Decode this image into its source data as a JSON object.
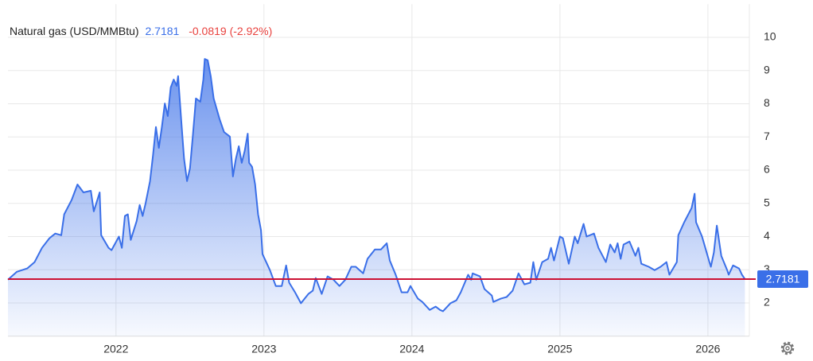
{
  "chart_data": {
    "type": "area",
    "title": "Natural gas (USD/MMBtu)",
    "last_value": 2.7181,
    "change_label": "-0.0819 (-2.92%)",
    "color": "#3a6fe8",
    "last_line_color": "#cc1133",
    "up_color": "#3a6fe8",
    "down_color": "#e8413d",
    "grid": true,
    "xlim": [
      2021.27,
      2026.28
    ],
    "xticks": [
      2022,
      2023,
      2024,
      2025,
      2026
    ],
    "ylim": [
      1,
      11
    ],
    "yticks": [
      2,
      3,
      4,
      5,
      6,
      7,
      8,
      9,
      10
    ],
    "x": [
      2021.27,
      2021.33,
      2021.4,
      2021.45,
      2021.5,
      2021.55,
      2021.59,
      2021.63,
      2021.65,
      2021.7,
      2021.74,
      2021.78,
      2021.83,
      2021.85,
      2021.89,
      2021.9,
      2021.95,
      2021.97,
      2022.02,
      2022.04,
      2022.06,
      2022.08,
      2022.1,
      2022.14,
      2022.16,
      2022.18,
      2022.2,
      2022.23,
      2022.25,
      2022.27,
      2022.29,
      2022.31,
      2022.33,
      2022.35,
      2022.37,
      2022.39,
      2022.41,
      2022.42,
      2022.44,
      2022.46,
      2022.48,
      2022.5,
      2022.52,
      2022.54,
      2022.57,
      2022.59,
      2022.6,
      2022.62,
      2022.64,
      2022.66,
      2022.7,
      2022.73,
      2022.77,
      2022.79,
      2022.81,
      2022.83,
      2022.85,
      2022.87,
      2022.89,
      2022.9,
      2022.92,
      2022.94,
      2022.96,
      2022.98,
      2022.99,
      2023.04,
      2023.08,
      2023.12,
      2023.15,
      2023.17,
      2023.21,
      2023.25,
      2023.3,
      2023.33,
      2023.35,
      2023.39,
      2023.43,
      2023.47,
      2023.51,
      2023.55,
      2023.59,
      2023.62,
      2023.67,
      2023.7,
      2023.75,
      2023.79,
      2023.83,
      2023.85,
      2023.89,
      2023.93,
      2023.97,
      2023.99,
      2024.04,
      2024.07,
      2024.12,
      2024.16,
      2024.19,
      2024.21,
      2024.26,
      2024.3,
      2024.33,
      2024.38,
      2024.4,
      2024.41,
      2024.46,
      2024.49,
      2024.54,
      2024.55,
      2024.6,
      2024.64,
      2024.68,
      2024.72,
      2024.76,
      2024.8,
      2024.82,
      2024.84,
      2024.88,
      2024.92,
      2024.94,
      2024.96,
      2025.0,
      2025.02,
      2025.06,
      2025.1,
      2025.12,
      2025.16,
      2025.18,
      2025.23,
      2025.26,
      2025.31,
      2025.34,
      2025.37,
      2025.39,
      2025.41,
      2025.43,
      2025.47,
      2025.51,
      2025.53,
      2025.55,
      2025.6,
      2025.64,
      2025.68,
      2025.72,
      2025.74,
      2025.79,
      2025.8,
      2025.84,
      2025.89,
      2025.91,
      2025.92,
      2025.96,
      2026.01,
      2026.02,
      2026.04,
      2026.06,
      2026.09,
      2026.13,
      2026.14,
      2026.17,
      2026.21,
      2026.23,
      2026.25
    ],
    "values": [
      2.7,
      2.94,
      3.04,
      3.23,
      3.66,
      3.95,
      4.09,
      4.04,
      4.67,
      5.1,
      5.57,
      5.33,
      5.38,
      4.76,
      5.33,
      4.04,
      3.66,
      3.59,
      4.0,
      3.66,
      4.62,
      4.67,
      3.9,
      4.47,
      4.95,
      4.62,
      5.0,
      5.67,
      6.44,
      7.3,
      6.67,
      7.3,
      8.01,
      7.63,
      8.49,
      8.73,
      8.54,
      8.83,
      7.54,
      6.34,
      5.67,
      6.05,
      7.06,
      8.16,
      8.06,
      8.73,
      9.35,
      9.31,
      8.83,
      8.16,
      7.54,
      7.15,
      7.01,
      5.81,
      6.34,
      6.72,
      6.22,
      6.58,
      7.1,
      6.22,
      6.1,
      5.57,
      4.67,
      4.19,
      3.47,
      2.99,
      2.51,
      2.51,
      3.13,
      2.61,
      2.32,
      1.99,
      2.27,
      2.37,
      2.75,
      2.27,
      2.8,
      2.7,
      2.51,
      2.7,
      3.09,
      3.09,
      2.89,
      3.33,
      3.61,
      3.61,
      3.8,
      3.28,
      2.85,
      2.32,
      2.32,
      2.51,
      2.13,
      2.03,
      1.79,
      1.89,
      1.79,
      1.75,
      1.99,
      2.08,
      2.32,
      2.85,
      2.7,
      2.89,
      2.8,
      2.42,
      2.22,
      2.03,
      2.13,
      2.18,
      2.37,
      2.89,
      2.56,
      2.61,
      3.23,
      2.7,
      3.23,
      3.33,
      3.66,
      3.28,
      4.0,
      3.95,
      3.18,
      4.0,
      3.8,
      4.38,
      4.0,
      4.09,
      3.66,
      3.23,
      3.76,
      3.52,
      3.8,
      3.33,
      3.76,
      3.85,
      3.42,
      3.66,
      3.18,
      3.09,
      2.99,
      3.09,
      3.23,
      2.85,
      3.23,
      4.04,
      4.43,
      4.86,
      5.29,
      4.43,
      4.0,
      3.23,
      3.09,
      3.52,
      4.33,
      3.42,
      2.99,
      2.85,
      3.13,
      3.04,
      2.85,
      2.72
    ]
  }
}
